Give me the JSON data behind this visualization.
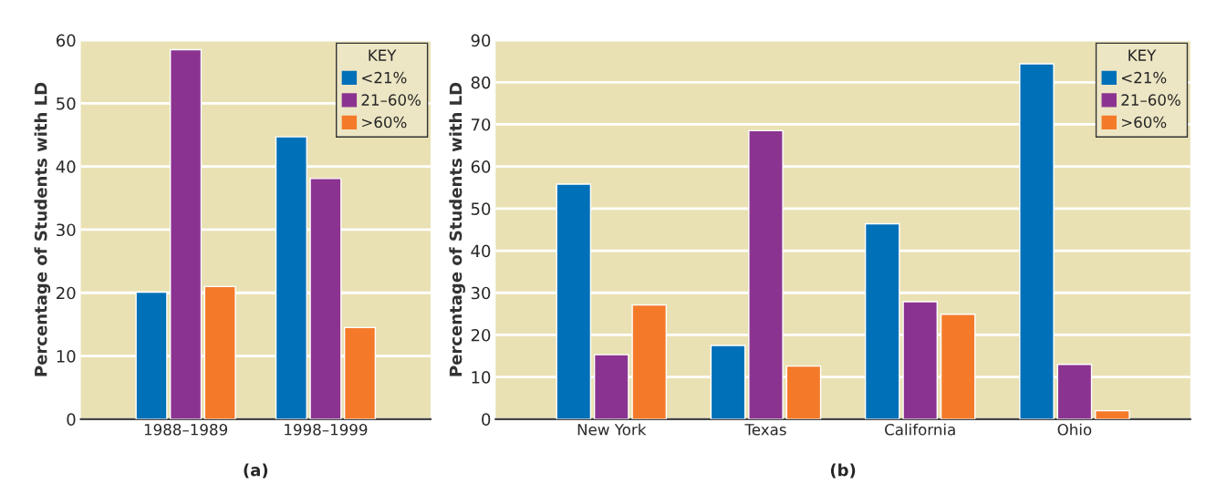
{
  "chart_data": [
    {
      "type": "bar",
      "title": "(a)",
      "ylabel": "Percentage of Students with LD",
      "legend_title": "KEY",
      "legend": "top right",
      "grid": "y",
      "categories": [
        "1988–1989",
        "1998–1999"
      ],
      "ylim": [
        0,
        60
      ],
      "yticks": [
        0,
        10,
        20,
        30,
        40,
        50,
        60
      ],
      "series": [
        {
          "name": "<21%",
          "color": "#0070b8",
          "values": [
            20.1,
            44.7
          ]
        },
        {
          "name": "21–60%",
          "color": "#8b3390",
          "values": [
            58.5,
            38.1
          ]
        },
        {
          "name": ">60%",
          "color": "#f47a2a",
          "values": [
            21.0,
            14.5
          ]
        }
      ]
    },
    {
      "type": "bar",
      "title": "(b)",
      "ylabel": "Percentage of Students with LD",
      "legend_title": "KEY",
      "legend": "top right",
      "grid": "y",
      "categories": [
        "New York",
        "Texas",
        "California",
        "Ohio"
      ],
      "ylim": [
        0,
        90
      ],
      "yticks": [
        0,
        10,
        20,
        30,
        40,
        50,
        60,
        70,
        80,
        90
      ],
      "series": [
        {
          "name": "<21%",
          "color": "#0070b8",
          "values": [
            55.8,
            17.5,
            46.4,
            84.4
          ]
        },
        {
          "name": "21–60%",
          "color": "#8b3390",
          "values": [
            15.3,
            68.5,
            27.9,
            13.0
          ]
        },
        {
          "name": ">60%",
          "color": "#f47a2a",
          "values": [
            27.1,
            12.6,
            24.9,
            2.0
          ]
        }
      ]
    }
  ]
}
